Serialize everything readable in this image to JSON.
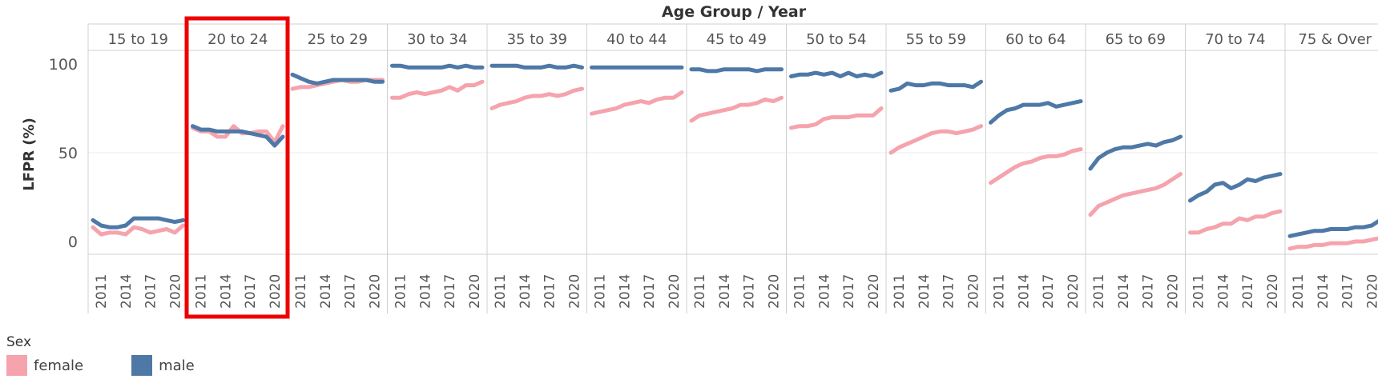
{
  "chart_data": {
    "type": "line",
    "title": "Age Group  /  Year",
    "ylabel": "LFPR (%)",
    "ylim": [
      -6,
      105
    ],
    "yticks": [
      0,
      50,
      100
    ],
    "x_tick_labels": [
      "2011",
      "2014",
      "2017",
      "2020"
    ],
    "years": [
      2010,
      2011,
      2012,
      2013,
      2014,
      2015,
      2016,
      2017,
      2018,
      2019,
      2020,
      2021
    ],
    "panels": [
      "15 to 19",
      "20 to 24",
      "25 to 29",
      "30 to 34",
      "35 to 39",
      "40 to 44",
      "45 to 49",
      "50 to 54",
      "55 to 59",
      "60 to 64",
      "65 to 69",
      "70 to 74",
      "75 & Over"
    ],
    "highlighted_panel": "20 to 24",
    "legend_title": "Sex",
    "series": [
      {
        "name": "female",
        "color": "#f5a3ad",
        "values": [
          [
            8,
            4,
            5,
            5,
            4,
            8,
            7,
            5,
            6,
            7,
            5,
            9
          ],
          [
            64,
            62,
            62,
            59,
            59,
            65,
            61,
            61,
            62,
            62,
            56,
            65
          ],
          [
            86,
            87,
            87,
            88,
            89,
            90,
            91,
            90,
            90,
            91,
            91,
            91
          ],
          [
            81,
            81,
            83,
            84,
            83,
            84,
            85,
            87,
            85,
            88,
            88,
            90
          ],
          [
            75,
            77,
            78,
            79,
            81,
            82,
            82,
            83,
            82,
            83,
            85,
            86
          ],
          [
            72,
            73,
            74,
            75,
            77,
            78,
            79,
            78,
            80,
            81,
            81,
            84
          ],
          [
            68,
            71,
            72,
            73,
            74,
            75,
            77,
            77,
            78,
            80,
            79,
            81
          ],
          [
            64,
            65,
            65,
            66,
            69,
            70,
            70,
            70,
            71,
            71,
            71,
            75
          ],
          [
            50,
            53,
            55,
            57,
            59,
            61,
            62,
            62,
            61,
            62,
            63,
            65
          ],
          [
            33,
            36,
            39,
            42,
            44,
            45,
            47,
            48,
            48,
            49,
            51,
            52
          ],
          [
            15,
            20,
            22,
            24,
            26,
            27,
            28,
            29,
            30,
            32,
            35,
            38
          ],
          [
            5,
            5,
            7,
            8,
            10,
            10,
            13,
            12,
            14,
            14,
            16,
            17
          ],
          [
            -4,
            -3,
            -3,
            -2,
            -2,
            -1,
            -1,
            -1,
            0,
            0,
            1,
            2
          ]
        ]
      },
      {
        "name": "male",
        "color": "#4e79a7",
        "values": [
          [
            12,
            9,
            8,
            8,
            9,
            13,
            13,
            13,
            13,
            12,
            11,
            12
          ],
          [
            65,
            63,
            63,
            62,
            62,
            62,
            62,
            61,
            60,
            59,
            54,
            59
          ],
          [
            94,
            92,
            90,
            89,
            90,
            91,
            91,
            91,
            91,
            91,
            90,
            90
          ],
          [
            99,
            99,
            98,
            98,
            98,
            98,
            98,
            99,
            98,
            99,
            98,
            98
          ],
          [
            99,
            99,
            99,
            99,
            98,
            98,
            98,
            99,
            98,
            98,
            99,
            98
          ],
          [
            98,
            98,
            98,
            98,
            98,
            98,
            98,
            98,
            98,
            98,
            98,
            98
          ],
          [
            97,
            97,
            96,
            96,
            97,
            97,
            97,
            97,
            96,
            97,
            97,
            97
          ],
          [
            93,
            94,
            94,
            95,
            94,
            95,
            93,
            95,
            93,
            94,
            93,
            95
          ],
          [
            85,
            86,
            89,
            88,
            88,
            89,
            89,
            88,
            88,
            88,
            87,
            90
          ],
          [
            67,
            71,
            74,
            75,
            77,
            77,
            77,
            78,
            76,
            77,
            78,
            79
          ],
          [
            41,
            47,
            50,
            52,
            53,
            53,
            54,
            55,
            54,
            56,
            57,
            59
          ],
          [
            23,
            26,
            28,
            32,
            33,
            30,
            32,
            35,
            34,
            36,
            37,
            38
          ],
          [
            3,
            4,
            5,
            6,
            6,
            7,
            7,
            7,
            8,
            8,
            9,
            12
          ]
        ]
      }
    ]
  }
}
